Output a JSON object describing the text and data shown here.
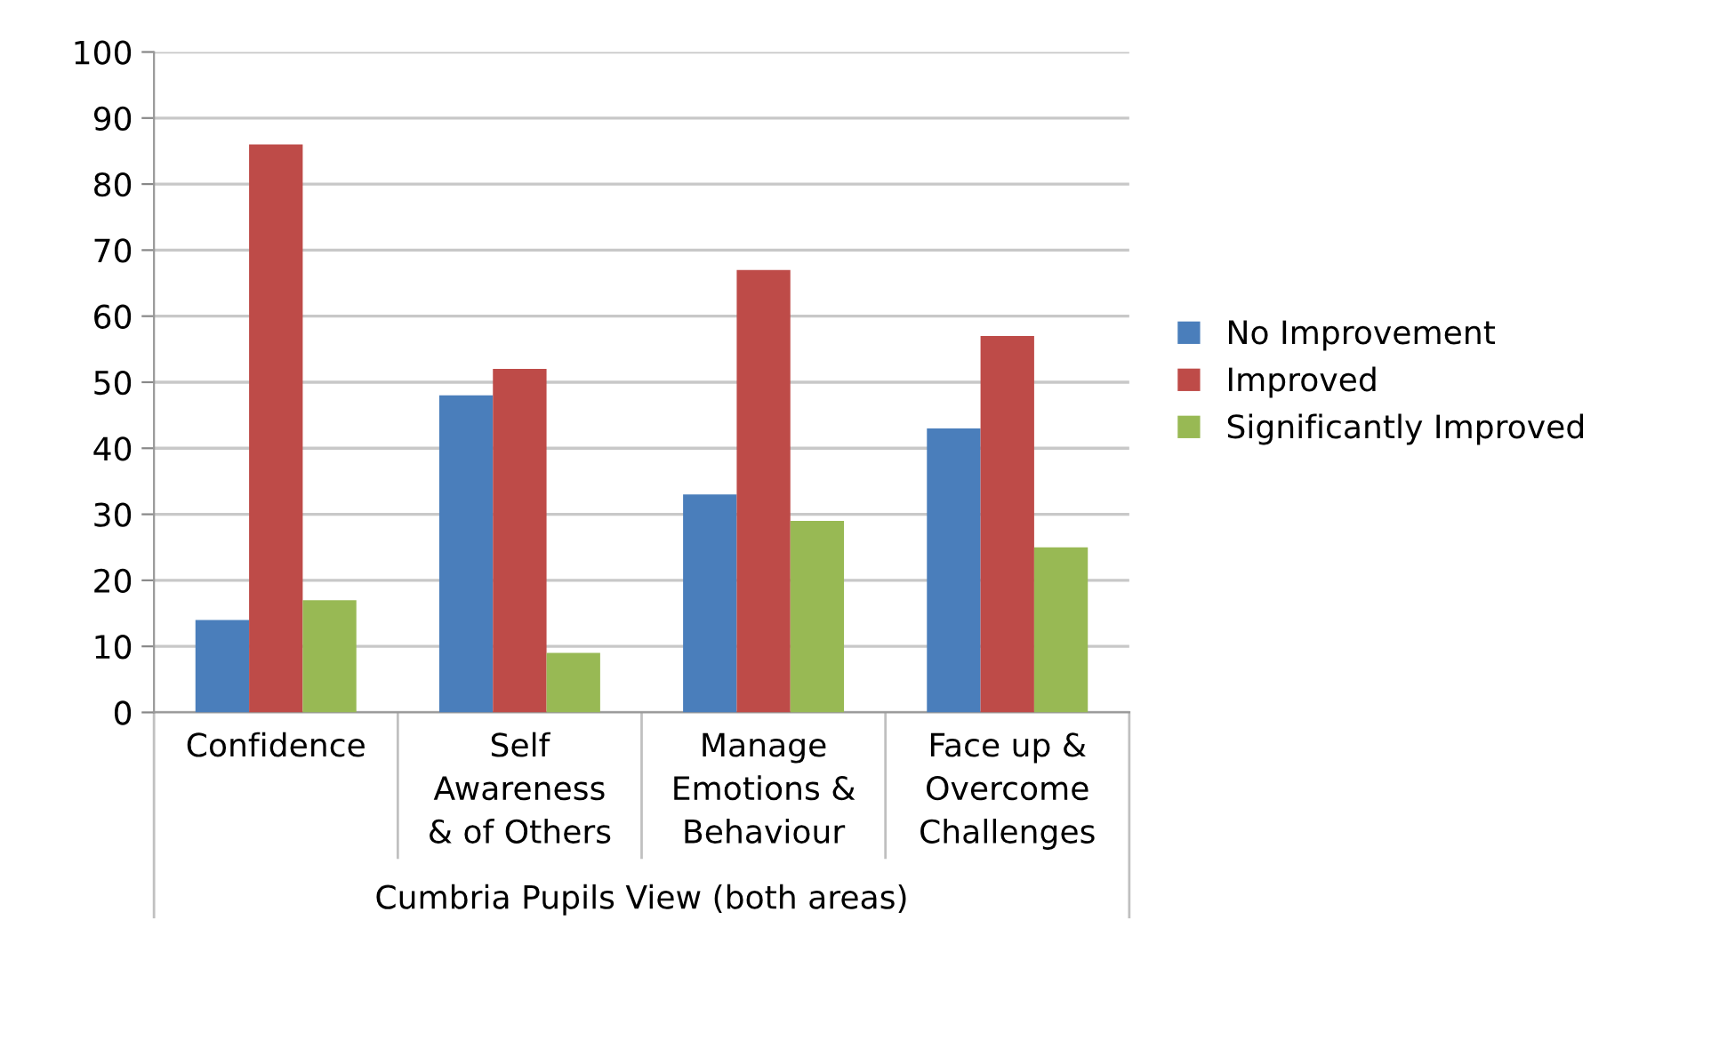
{
  "chart_data": {
    "type": "bar",
    "categories": [
      "Confidence",
      "Self\nAwareness\n& of Others",
      "Manage\nEmotions &\nBehaviour",
      "Face up &\nOvercome\nChallenges"
    ],
    "xlabel": "Cumbria Pupils View (both areas)",
    "series": [
      {
        "name": "No Improvement",
        "color": "#4a7ebb",
        "values": [
          14,
          48,
          33,
          43
        ]
      },
      {
        "name": "Improved",
        "color": "#be4b48",
        "values": [
          86,
          52,
          67,
          57
        ]
      },
      {
        "name": "Significantly Improved",
        "color": "#98b954",
        "values": [
          17,
          9,
          29,
          25
        ]
      }
    ],
    "ylim": [
      0,
      100
    ],
    "yticks": [
      0,
      10,
      20,
      30,
      40,
      50,
      60,
      70,
      80,
      90,
      100
    ],
    "grid": "y",
    "legend": "right"
  }
}
